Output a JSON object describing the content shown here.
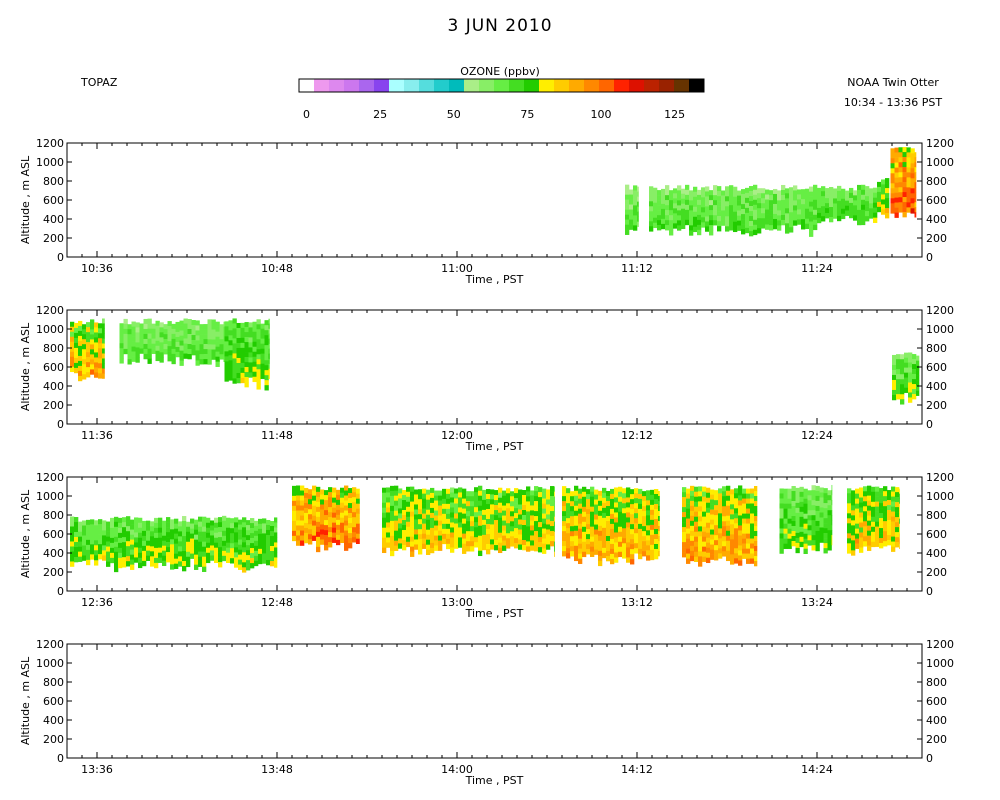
{
  "title": "3 JUN 2010",
  "site": "TOPAZ",
  "platform": "NOAA Twin Otter",
  "time_range": "10:34 - 13:36 PST",
  "colorbar": {
    "label": "OZONE (ppbv)",
    "colors": [
      "#ffffff",
      "#ee99ee",
      "#dd88ee",
      "#cc77ee",
      "#aa66ee",
      "#8844ee",
      "#aaffff",
      "#88eeee",
      "#55dddd",
      "#22cccc",
      "#00bbbb",
      "#aaee88",
      "#88ee66",
      "#66ee44",
      "#44dd22",
      "#22cc00",
      "#ffee00",
      "#ffcc00",
      "#ffaa00",
      "#ff8800",
      "#ff6600",
      "#ff2200",
      "#dd1100",
      "#bb2200",
      "#992200",
      "#663300",
      "#000000"
    ],
    "tick_values": [
      "0",
      "25",
      "50",
      "75",
      "100",
      "125"
    ],
    "vmin": 0,
    "vmax": 137.5
  },
  "chart_data": {
    "type": "heatmap",
    "variable": "OZONE (ppbv)",
    "xlabel": "Time , PST",
    "ylabel": "Altitude , m ASL",
    "ylim": [
      0,
      1200
    ],
    "yticks": [
      "0",
      "200",
      "400",
      "600",
      "800",
      "1000",
      "1200"
    ],
    "panels": [
      {
        "id": "p1",
        "xlim_min": [
          634,
          691
        ],
        "xticks": [
          {
            "label": "10:36",
            "min": 636
          },
          {
            "label": "10:48",
            "min": 648
          },
          {
            "label": "11:00",
            "min": 660
          },
          {
            "label": "11:12",
            "min": 672
          },
          {
            "label": "11:24",
            "min": 684
          }
        ],
        "segments": [
          {
            "t0": 671.2,
            "t1": 672.1,
            "z0": 300,
            "z1": 730,
            "o3": 66,
            "var": 9
          },
          {
            "t0": 672.8,
            "t1": 684,
            "z0": 300,
            "z1": 730,
            "o3": 68,
            "var": 8
          },
          {
            "t0": 684,
            "t1": 688,
            "z0": 400,
            "z1": 730,
            "o3": 70,
            "var": 8
          },
          {
            "t0": 688,
            "t1": 688.8,
            "z0": 480,
            "z1": 800,
            "o3": 80,
            "var": 10
          },
          {
            "t0": 688.9,
            "t1": 690.6,
            "z0": 470,
            "z1": 1130,
            "o3": 95,
            "var": 14
          }
        ]
      },
      {
        "id": "p2",
        "xlim_min": [
          694,
          751
        ],
        "xticks": [
          {
            "label": "11:36",
            "min": 696
          },
          {
            "label": "11:48",
            "min": 708
          },
          {
            "label": "12:00",
            "min": 720
          },
          {
            "label": "12:12",
            "min": 732
          },
          {
            "label": "12:24",
            "min": 744
          }
        ],
        "segments": [
          {
            "t0": 694.2,
            "t1": 696.5,
            "z0": 530,
            "z1": 1080,
            "o3": 85,
            "var": 14
          },
          {
            "t0": 697.5,
            "t1": 704.5,
            "z0": 700,
            "z1": 1080,
            "o3": 68,
            "var": 7
          },
          {
            "t0": 704.5,
            "t1": 707.5,
            "z0": 450,
            "z1": 1080,
            "o3": 74,
            "var": 9
          },
          {
            "t0": 749,
            "t1": 750.8,
            "z0": 300,
            "z1": 740,
            "o3": 72,
            "var": 10
          }
        ]
      },
      {
        "id": "p3",
        "xlim_min": [
          754,
          811
        ],
        "xticks": [
          {
            "label": "12:36",
            "min": 756
          },
          {
            "label": "12:48",
            "min": 768
          },
          {
            "label": "13:00",
            "min": 780
          },
          {
            "label": "13:12",
            "min": 792
          },
          {
            "label": "13:24",
            "min": 804
          }
        ],
        "segments": [
          {
            "t0": 754.2,
            "t1": 768,
            "z0": 300,
            "z1": 760,
            "o3": 74,
            "var": 10
          },
          {
            "t0": 769,
            "t1": 773.5,
            "z0": 500,
            "z1": 1080,
            "o3": 92,
            "var": 14
          },
          {
            "t0": 775,
            "t1": 786.5,
            "z0": 450,
            "z1": 1080,
            "o3": 80,
            "var": 12
          },
          {
            "t0": 787,
            "t1": 793.5,
            "z0": 360,
            "z1": 1080,
            "o3": 85,
            "var": 13
          },
          {
            "t0": 795,
            "t1": 800,
            "z0": 350,
            "z1": 1090,
            "o3": 86,
            "var": 13
          },
          {
            "t0": 801.5,
            "t1": 805,
            "z0": 460,
            "z1": 1090,
            "o3": 72,
            "var": 10
          },
          {
            "t0": 806,
            "t1": 809.5,
            "z0": 460,
            "z1": 1090,
            "o3": 82,
            "var": 12
          }
        ]
      },
      {
        "id": "p4",
        "xlim_min": [
          814,
          871
        ],
        "xticks": [
          {
            "label": "13:36",
            "min": 816
          },
          {
            "label": "13:48",
            "min": 828
          },
          {
            "label": "14:00",
            "min": 840
          },
          {
            "label": "14:12",
            "min": 852
          },
          {
            "label": "14:24",
            "min": 864
          }
        ],
        "segments": []
      }
    ]
  }
}
